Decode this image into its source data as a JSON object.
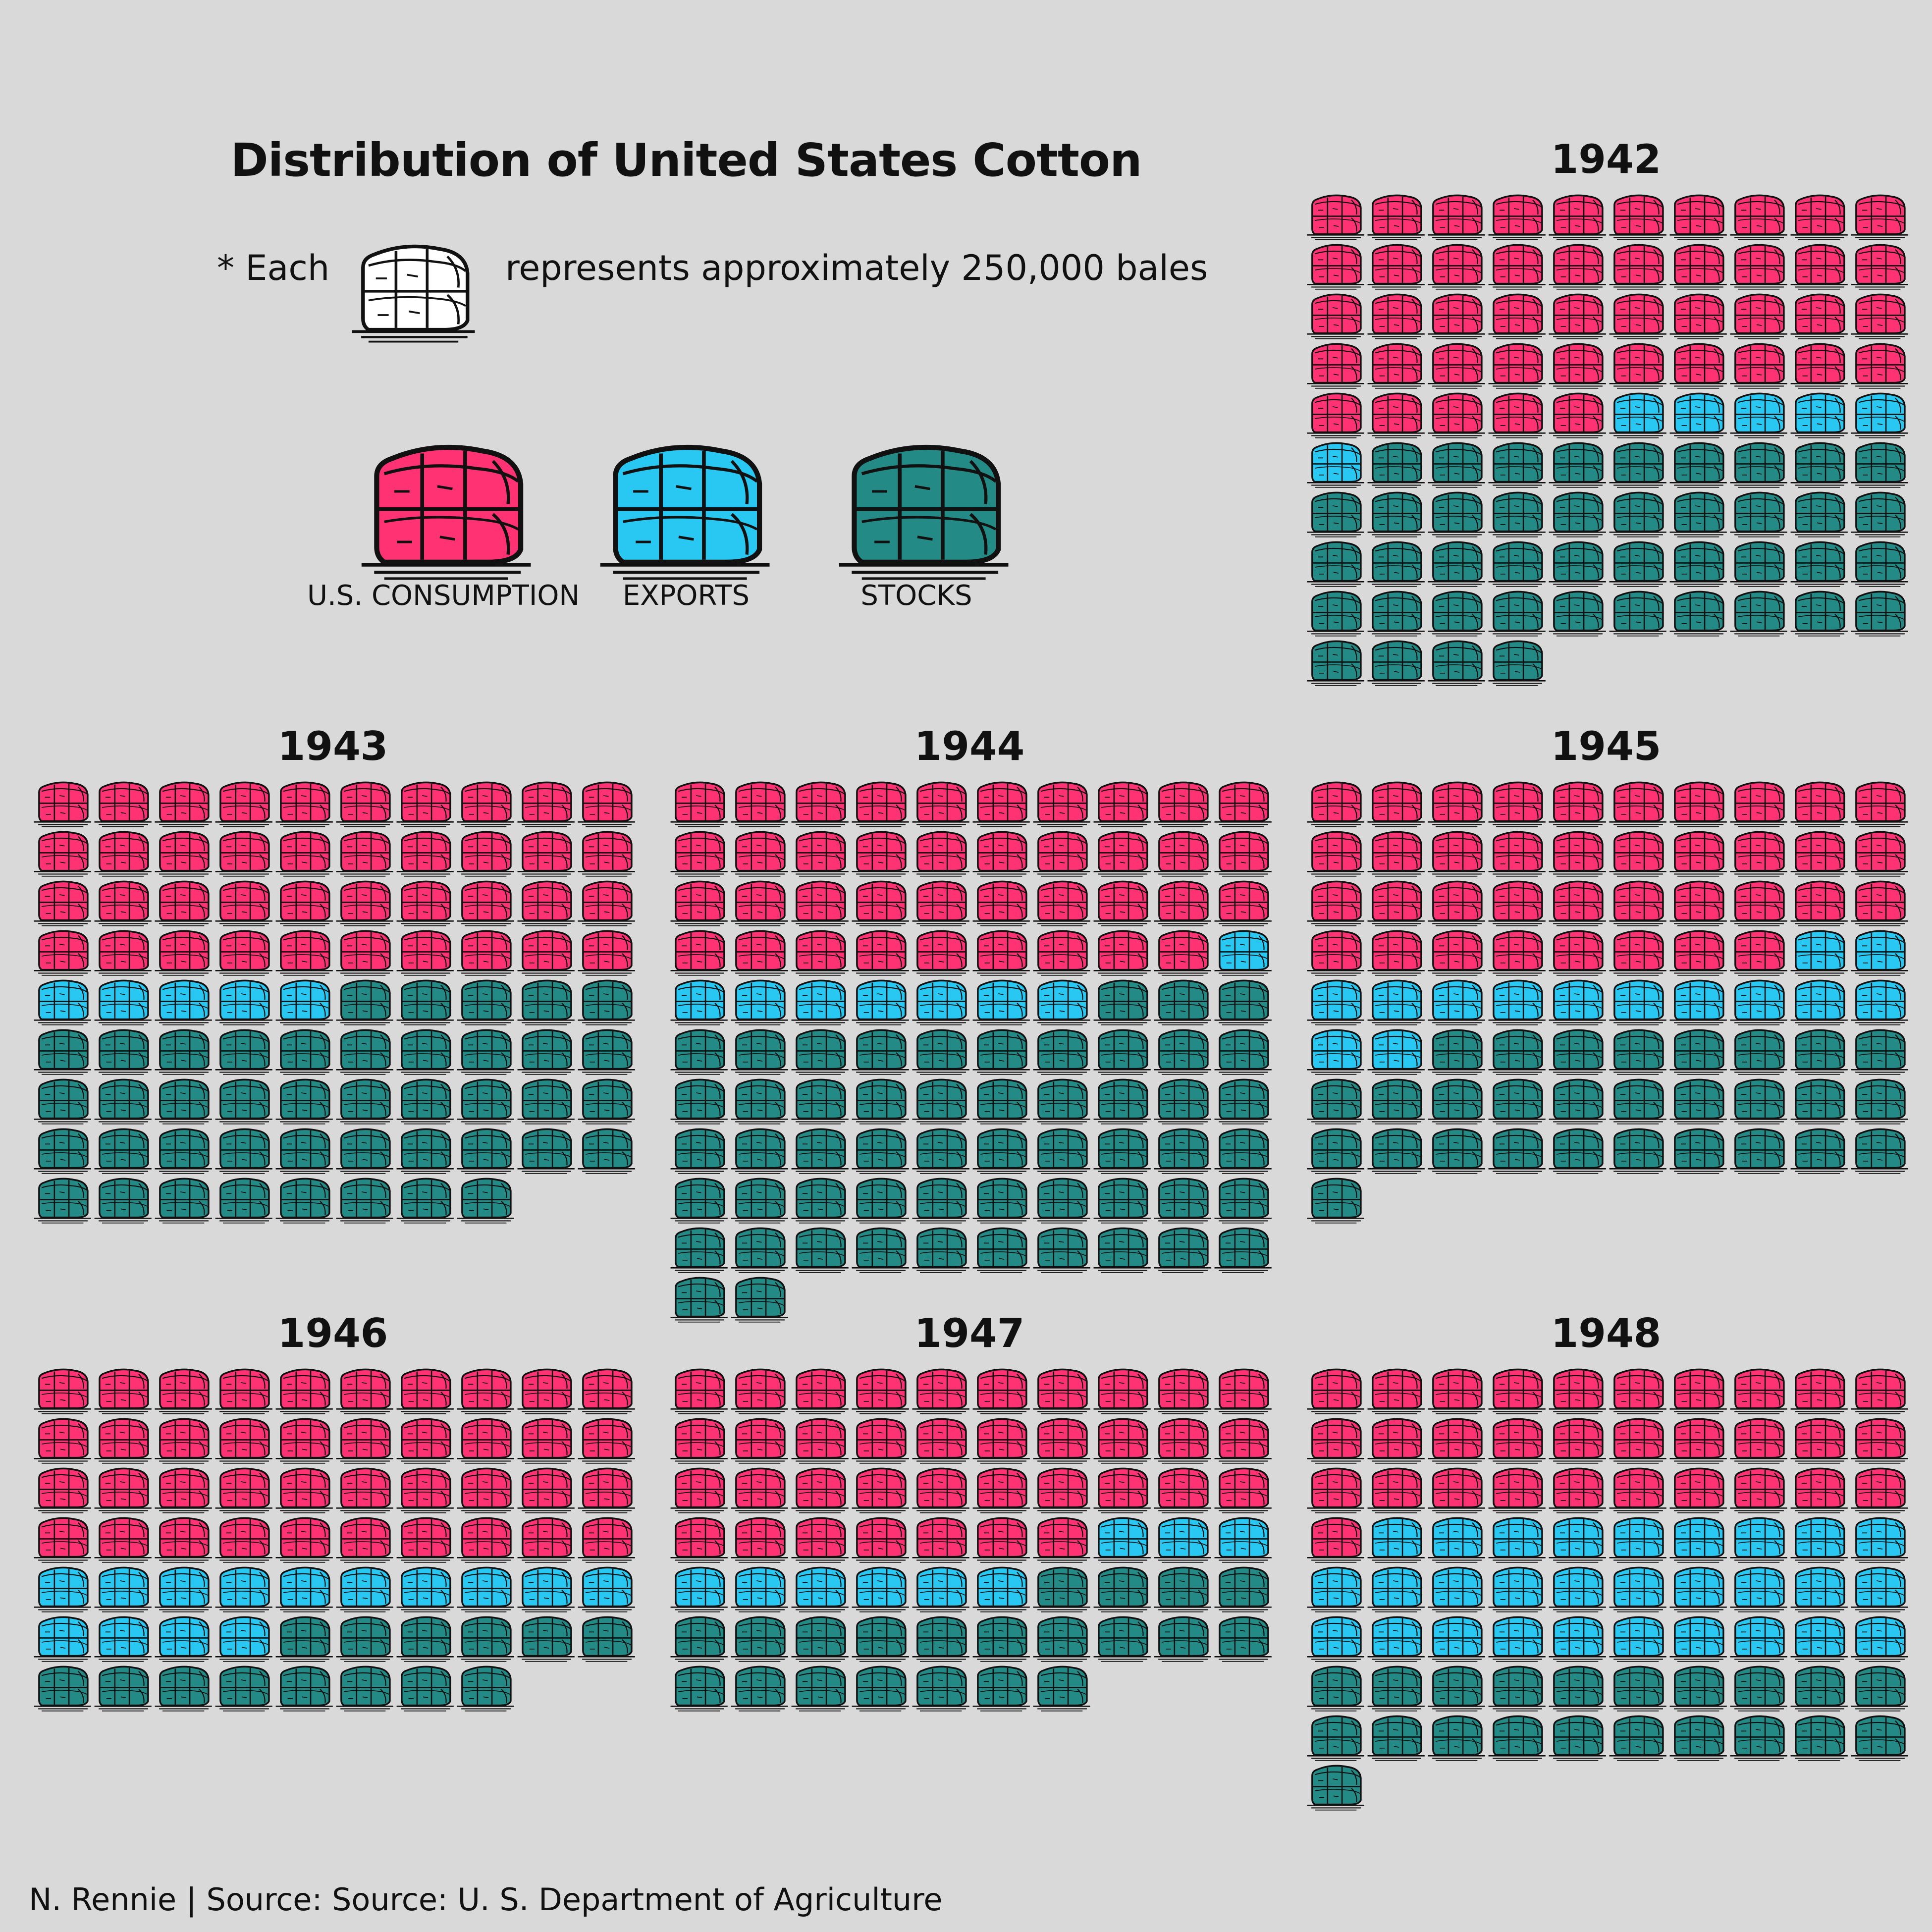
{
  "colors": {
    "background": "#d9d9d9",
    "consumption": "#ff3374",
    "exports": "#29c8f2",
    "stocks": "#248a85",
    "outline": "#111111"
  },
  "icon": "cotton-bale-icon",
  "chart_data": {
    "type": "pictogram",
    "title": "Distribution of United States Cotton",
    "unit_note_prefix": "* Each",
    "unit_note_suffix": "represents approximately 250,000 bales",
    "unit_value": 250000,
    "icons_per_row": 10,
    "categories": [
      "U.S. CONSUMPTION",
      "EXPORTS",
      "STOCKS"
    ],
    "years": [
      {
        "year": "1942",
        "consumption": 45,
        "exports": 6,
        "stocks": 43
      },
      {
        "year": "1943",
        "consumption": 40,
        "exports": 5,
        "stocks": 43
      },
      {
        "year": "1944",
        "consumption": 39,
        "exports": 8,
        "stocks": 55
      },
      {
        "year": "1945",
        "consumption": 38,
        "exports": 14,
        "stocks": 29
      },
      {
        "year": "1946",
        "consumption": 40,
        "exports": 14,
        "stocks": 14
      },
      {
        "year": "1947",
        "consumption": 37,
        "exports": 9,
        "stocks": 21
      },
      {
        "year": "1948",
        "consumption": 31,
        "exports": 29,
        "stocks": 21
      }
    ]
  },
  "caption": "N. Rennie | Source:  Source: U. S. Department of Agriculture"
}
